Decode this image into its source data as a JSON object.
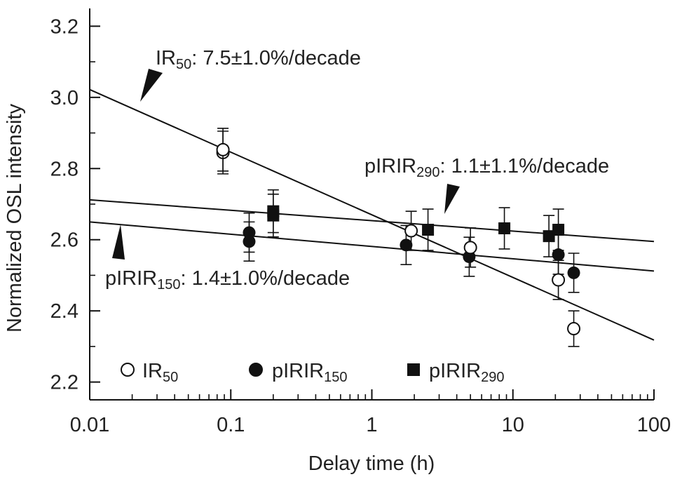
{
  "chart_data": {
    "type": "scatter",
    "xlabel": "Delay time (h)",
    "ylabel": "Normalized OSL intensity",
    "xscale": "log",
    "xlim": [
      0.01,
      100
    ],
    "ylim": [
      2.15,
      3.25
    ],
    "xticks": [
      0.01,
      0.1,
      1,
      10,
      100
    ],
    "xtick_labels": [
      "0.01",
      "0.1",
      "1",
      "10",
      "100"
    ],
    "yticks": [
      2.2,
      2.4,
      2.6,
      2.8,
      3.0,
      3.2
    ],
    "ytick_labels": [
      "2.2",
      "2.4",
      "2.6",
      "2.8",
      "3.0",
      "3.2"
    ],
    "grid": false,
    "legend_position": "bottom-left",
    "series": [
      {
        "key": "ir50",
        "name_main": "IR",
        "name_sub": "50",
        "marker": "open-circle",
        "points": [
          {
            "x": 0.088,
            "y": 2.845,
            "err": 0.06
          },
          {
            "x": 0.088,
            "y": 2.853,
            "err": 0.06
          },
          {
            "x": 1.9,
            "y": 2.625,
            "err": 0.055
          },
          {
            "x": 5.0,
            "y": 2.578,
            "err": 0.055
          },
          {
            "x": 21.0,
            "y": 2.487,
            "err": 0.055
          },
          {
            "x": 27.0,
            "y": 2.35,
            "err": 0.05
          }
        ],
        "fit": {
          "x": [
            0.01,
            100
          ],
          "y": [
            3.022,
            2.318
          ]
        },
        "annotation": {
          "main": "IR",
          "sub": "50",
          "rest": ": 7.5±1.0%/decade"
        }
      },
      {
        "key": "pirir150",
        "name_main": "pIRIR",
        "name_sub": "150",
        "marker": "filled-circle",
        "points": [
          {
            "x": 0.135,
            "y": 2.62,
            "err": 0.055
          },
          {
            "x": 0.135,
            "y": 2.595,
            "err": 0.055
          },
          {
            "x": 1.75,
            "y": 2.585,
            "err": 0.055
          },
          {
            "x": 4.9,
            "y": 2.552,
            "err": 0.055
          },
          {
            "x": 21.0,
            "y": 2.558,
            "err": 0.055
          },
          {
            "x": 27.0,
            "y": 2.507,
            "err": 0.055
          }
        ],
        "fit": {
          "x": [
            0.01,
            100
          ],
          "y": [
            2.65,
            2.512
          ]
        },
        "annotation": {
          "main": "pIRIR",
          "sub": "150",
          "rest": ": 1.4±1.0%/decade"
        }
      },
      {
        "key": "pirir290",
        "name_main": "pIRIR",
        "name_sub": "290",
        "marker": "filled-square",
        "points": [
          {
            "x": 0.2,
            "y": 2.68,
            "err": 0.06
          },
          {
            "x": 0.2,
            "y": 2.668,
            "err": 0.06
          },
          {
            "x": 2.5,
            "y": 2.628,
            "err": 0.058
          },
          {
            "x": 8.7,
            "y": 2.632,
            "err": 0.058
          },
          {
            "x": 18.0,
            "y": 2.61,
            "err": 0.058
          },
          {
            "x": 21.0,
            "y": 2.628,
            "err": 0.058
          }
        ],
        "fit": {
          "x": [
            0.01,
            100
          ],
          "y": [
            2.712,
            2.595
          ]
        },
        "annotation": {
          "main": "pIRIR",
          "sub": "290",
          "rest": ": 1.1±1.1%/decade"
        }
      }
    ]
  }
}
